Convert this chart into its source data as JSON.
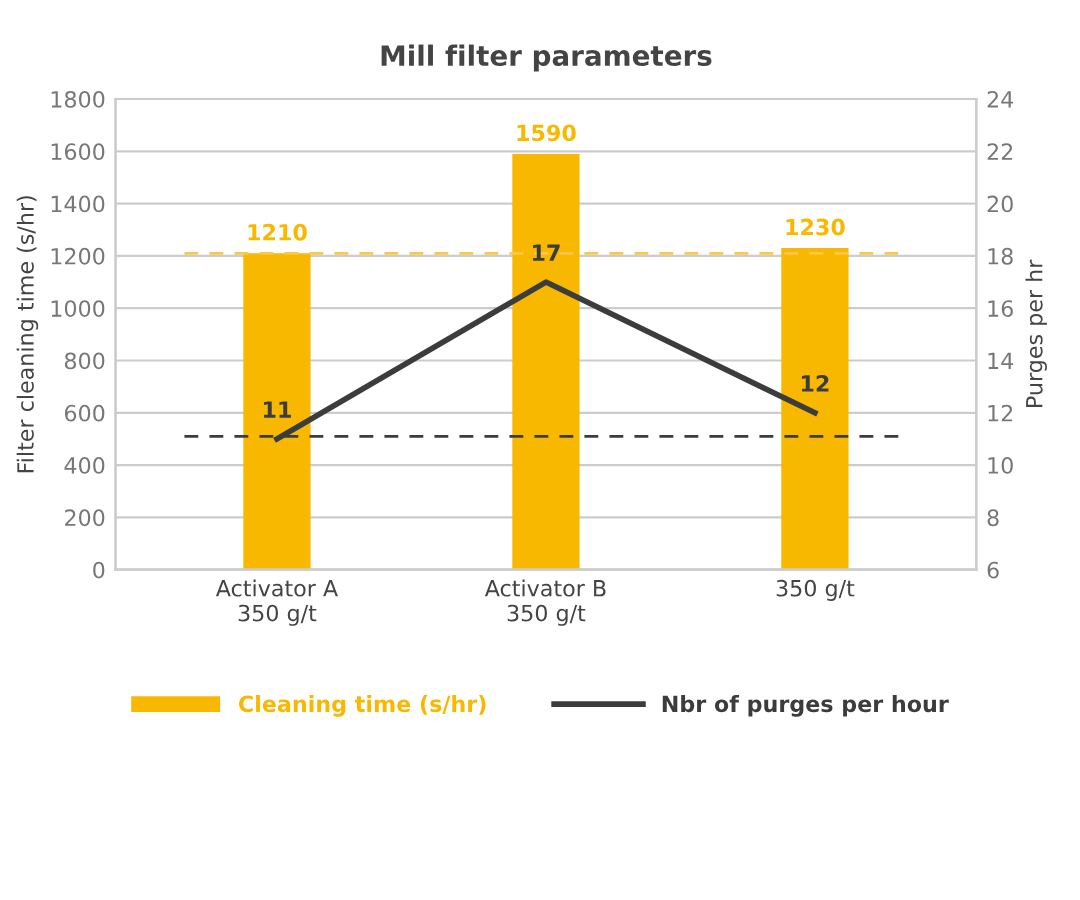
{
  "chart_data": {
    "type": "bar",
    "title": "Mill filter parameters",
    "ylabel": "Filter cleaning time (s/hr)",
    "y2label": "Purges per hr",
    "categories": [
      "Activator A\n350 g/t",
      "Activator B\n350 g/t",
      "350 g/t"
    ],
    "series": [
      {
        "name": "Cleaning time (s/hr)",
        "color": "#f9b800",
        "values": [
          1210,
          1590,
          1230
        ]
      },
      {
        "name": "Nbr of purges per hour",
        "type": "line",
        "axis": "y2",
        "color": "#3c3c3c",
        "values": [
          11,
          17,
          12
        ]
      }
    ],
    "ylim": [
      0,
      1800
    ],
    "yticks": [
      0,
      200,
      400,
      600,
      800,
      1000,
      1200,
      1400,
      1600,
      1800
    ],
    "y2lim": [
      6,
      24
    ],
    "y2ticks": [
      6,
      8,
      10,
      12,
      14,
      16,
      18,
      20,
      22,
      24
    ],
    "ref_lines": [
      {
        "axis": "y",
        "value": 1210,
        "color": "#f9c84a",
        "line_style": "dashed"
      },
      {
        "axis": "y2",
        "value": 11.1,
        "color": "#3c3c3c",
        "line_style": "dashed"
      }
    ],
    "data_labels": true,
    "grid": "y",
    "legend": "bottom",
    "marker": "none"
  }
}
